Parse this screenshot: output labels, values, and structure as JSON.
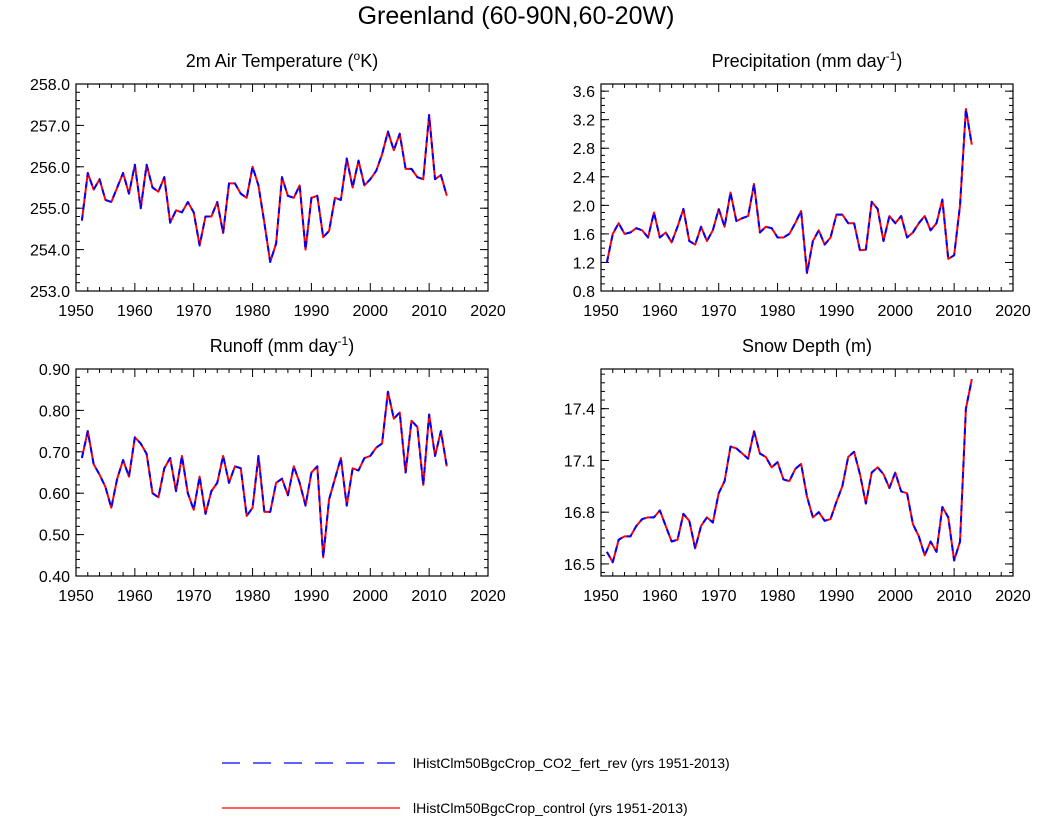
{
  "figure": {
    "title": "Greenland (60-90N,60-20W)"
  },
  "legend": {
    "placement": "bottom-center",
    "items": [
      {
        "label": "lHistClm50BgcCrop_CO2_fert_rev (yrs 1951-2013)",
        "color": "#0000ff",
        "style": "dashed"
      },
      {
        "label": "lHistClm50BgcCrop_control (yrs 1951-2013)",
        "color": "#ff0000",
        "style": "solid"
      }
    ]
  },
  "chart_data": [
    {
      "type": "line",
      "title": "2m Air Temperature (",
      "title_sup": "o",
      "title_after": "K)",
      "xlim": [
        1950,
        2020
      ],
      "ylim": [
        253.0,
        258.0
      ],
      "xticks": [
        1950,
        1960,
        1970,
        1980,
        1990,
        2000,
        2010,
        2020
      ],
      "yticks": [
        253.0,
        254.0,
        255.0,
        256.0,
        257.0,
        258.0
      ],
      "ytick_decimals": 1,
      "yminor": 0.2,
      "x_start": 1951,
      "series": [
        {
          "values": [
            254.7,
            255.85,
            255.45,
            255.7,
            255.2,
            255.15,
            255.5,
            255.85,
            255.35,
            256.05,
            255.0,
            256.05,
            255.5,
            255.4,
            255.75,
            254.65,
            254.95,
            254.9,
            255.15,
            254.9,
            254.1,
            254.8,
            254.8,
            255.15,
            254.4,
            255.6,
            255.6,
            255.35,
            255.25,
            256.0,
            255.55,
            254.65,
            253.7,
            254.15,
            255.75,
            255.3,
            255.25,
            255.55,
            254.0,
            255.25,
            255.3,
            254.3,
            254.45,
            255.25,
            255.2,
            256.2,
            255.5,
            256.15,
            255.55,
            255.7,
            255.9,
            256.3,
            256.85,
            256.4,
            256.8,
            255.95,
            255.95,
            255.75,
            255.7,
            257.25,
            255.7,
            255.8,
            255.3
          ],
          "color": "#0000ff",
          "style": "dashed"
        },
        {
          "values": [
            254.7,
            255.85,
            255.45,
            255.7,
            255.2,
            255.15,
            255.5,
            255.85,
            255.35,
            256.05,
            255.0,
            256.05,
            255.5,
            255.4,
            255.75,
            254.65,
            254.95,
            254.9,
            255.15,
            254.9,
            254.1,
            254.8,
            254.8,
            255.15,
            254.4,
            255.6,
            255.6,
            255.35,
            255.25,
            256.0,
            255.55,
            254.65,
            253.7,
            254.15,
            255.75,
            255.3,
            255.25,
            255.55,
            254.0,
            255.25,
            255.3,
            254.3,
            254.45,
            255.25,
            255.2,
            256.2,
            255.5,
            256.15,
            255.55,
            255.7,
            255.9,
            256.3,
            256.85,
            256.4,
            256.8,
            255.95,
            255.95,
            255.75,
            255.7,
            257.25,
            255.7,
            255.8,
            255.3
          ],
          "color": "#ff0000",
          "style": "solid"
        }
      ]
    },
    {
      "type": "line",
      "title": "Precipitation (mm day",
      "title_sup": "-1",
      "title_after": ")",
      "xlim": [
        1950,
        2020
      ],
      "ylim": [
        0.8,
        3.7
      ],
      "xticks": [
        1950,
        1960,
        1970,
        1980,
        1990,
        2000,
        2010,
        2020
      ],
      "yticks": [
        0.8,
        1.2,
        1.6,
        2.0,
        2.4,
        2.8,
        3.2,
        3.6
      ],
      "ytick_decimals": 1,
      "yminor": 0.1,
      "x_start": 1951,
      "series": [
        {
          "values": [
            1.2,
            1.6,
            1.75,
            1.6,
            1.62,
            1.68,
            1.65,
            1.55,
            1.9,
            1.55,
            1.62,
            1.48,
            1.7,
            1.95,
            1.5,
            1.45,
            1.7,
            1.5,
            1.65,
            1.95,
            1.7,
            2.18,
            1.78,
            1.82,
            1.85,
            2.3,
            1.62,
            1.7,
            1.68,
            1.55,
            1.55,
            1.6,
            1.75,
            1.92,
            1.05,
            1.5,
            1.65,
            1.45,
            1.55,
            1.87,
            1.87,
            1.75,
            1.75,
            1.37,
            1.38,
            2.05,
            1.95,
            1.5,
            1.85,
            1.75,
            1.85,
            1.55,
            1.62,
            1.75,
            1.85,
            1.65,
            1.75,
            2.08,
            1.25,
            1.3,
            2.0,
            3.35,
            2.85
          ],
          "color": "#0000ff",
          "style": "dashed"
        },
        {
          "values": [
            1.2,
            1.6,
            1.75,
            1.6,
            1.62,
            1.68,
            1.65,
            1.55,
            1.9,
            1.55,
            1.62,
            1.48,
            1.7,
            1.95,
            1.5,
            1.45,
            1.7,
            1.5,
            1.65,
            1.95,
            1.7,
            2.18,
            1.78,
            1.82,
            1.85,
            2.3,
            1.62,
            1.7,
            1.68,
            1.55,
            1.55,
            1.6,
            1.75,
            1.92,
            1.05,
            1.5,
            1.65,
            1.45,
            1.55,
            1.87,
            1.87,
            1.75,
            1.75,
            1.37,
            1.38,
            2.05,
            1.95,
            1.5,
            1.85,
            1.75,
            1.85,
            1.55,
            1.62,
            1.75,
            1.85,
            1.65,
            1.75,
            2.08,
            1.25,
            1.3,
            2.0,
            3.35,
            2.85
          ],
          "color": "#ff0000",
          "style": "solid"
        }
      ]
    },
    {
      "type": "line",
      "title": "Runoff (mm day",
      "title_sup": "-1",
      "title_after": ")",
      "xlim": [
        1950,
        2020
      ],
      "ylim": [
        0.4,
        0.9
      ],
      "xticks": [
        1950,
        1960,
        1970,
        1980,
        1990,
        2000,
        2010,
        2020
      ],
      "yticks": [
        0.4,
        0.5,
        0.6,
        0.7,
        0.8,
        0.9
      ],
      "ytick_decimals": 2,
      "yminor": 0.02,
      "x_start": 1951,
      "series": [
        {
          "values": [
            0.685,
            0.75,
            0.67,
            0.645,
            0.615,
            0.565,
            0.635,
            0.68,
            0.64,
            0.735,
            0.72,
            0.695,
            0.6,
            0.59,
            0.66,
            0.685,
            0.605,
            0.69,
            0.6,
            0.56,
            0.64,
            0.55,
            0.605,
            0.625,
            0.69,
            0.625,
            0.665,
            0.66,
            0.545,
            0.565,
            0.69,
            0.555,
            0.555,
            0.625,
            0.635,
            0.595,
            0.665,
            0.625,
            0.57,
            0.65,
            0.665,
            0.445,
            0.585,
            0.635,
            0.685,
            0.57,
            0.66,
            0.655,
            0.685,
            0.69,
            0.71,
            0.72,
            0.845,
            0.78,
            0.795,
            0.65,
            0.775,
            0.76,
            0.62,
            0.79,
            0.69,
            0.75,
            0.665
          ],
          "color": "#0000ff",
          "style": "dashed"
        },
        {
          "values": [
            0.685,
            0.75,
            0.67,
            0.645,
            0.615,
            0.565,
            0.635,
            0.68,
            0.64,
            0.735,
            0.72,
            0.695,
            0.6,
            0.59,
            0.66,
            0.685,
            0.605,
            0.69,
            0.6,
            0.56,
            0.64,
            0.55,
            0.605,
            0.625,
            0.69,
            0.625,
            0.665,
            0.66,
            0.545,
            0.565,
            0.69,
            0.555,
            0.555,
            0.625,
            0.635,
            0.595,
            0.665,
            0.625,
            0.57,
            0.65,
            0.665,
            0.445,
            0.585,
            0.635,
            0.685,
            0.57,
            0.66,
            0.655,
            0.685,
            0.69,
            0.71,
            0.72,
            0.845,
            0.78,
            0.795,
            0.65,
            0.775,
            0.76,
            0.62,
            0.79,
            0.69,
            0.75,
            0.665
          ],
          "color": "#ff0000",
          "style": "solid"
        }
      ]
    },
    {
      "type": "line",
      "title": "Snow Depth (m)",
      "title_sup": "",
      "title_after": "",
      "xlim": [
        1950,
        2020
      ],
      "ylim": [
        16.43,
        17.63
      ],
      "xticks": [
        1950,
        1960,
        1970,
        1980,
        1990,
        2000,
        2010,
        2020
      ],
      "yticks": [
        16.5,
        16.8,
        17.1,
        17.4
      ],
      "ytick_decimals": 1,
      "yminor": 0.05,
      "x_start": 1951,
      "series": [
        {
          "values": [
            16.57,
            16.51,
            16.64,
            16.66,
            16.66,
            16.72,
            16.76,
            16.77,
            16.77,
            16.81,
            16.72,
            16.63,
            16.64,
            16.79,
            16.75,
            16.59,
            16.72,
            16.77,
            16.74,
            16.91,
            16.98,
            17.18,
            17.17,
            17.14,
            17.11,
            17.27,
            17.14,
            17.12,
            17.06,
            17.09,
            16.99,
            16.98,
            17.05,
            17.08,
            16.89,
            16.77,
            16.8,
            16.75,
            16.76,
            16.86,
            16.95,
            17.12,
            17.15,
            17.02,
            16.85,
            17.03,
            17.06,
            17.02,
            16.94,
            17.03,
            16.92,
            16.91,
            16.73,
            16.66,
            16.55,
            16.63,
            16.57,
            16.83,
            16.77,
            16.52,
            16.63,
            17.4,
            17.57
          ],
          "color": "#0000ff",
          "style": "dashed"
        },
        {
          "values": [
            16.57,
            16.51,
            16.64,
            16.66,
            16.66,
            16.72,
            16.76,
            16.77,
            16.77,
            16.81,
            16.72,
            16.63,
            16.64,
            16.79,
            16.75,
            16.59,
            16.72,
            16.77,
            16.74,
            16.91,
            16.98,
            17.18,
            17.17,
            17.14,
            17.11,
            17.27,
            17.14,
            17.12,
            17.06,
            17.09,
            16.99,
            16.98,
            17.05,
            17.08,
            16.89,
            16.77,
            16.8,
            16.75,
            16.76,
            16.86,
            16.95,
            17.12,
            17.15,
            17.02,
            16.85,
            17.03,
            17.06,
            17.02,
            16.94,
            17.03,
            16.92,
            16.91,
            16.73,
            16.66,
            16.55,
            16.63,
            16.57,
            16.83,
            16.77,
            16.52,
            16.63,
            17.4,
            17.57
          ],
          "color": "#ff0000",
          "style": "solid"
        }
      ]
    }
  ]
}
